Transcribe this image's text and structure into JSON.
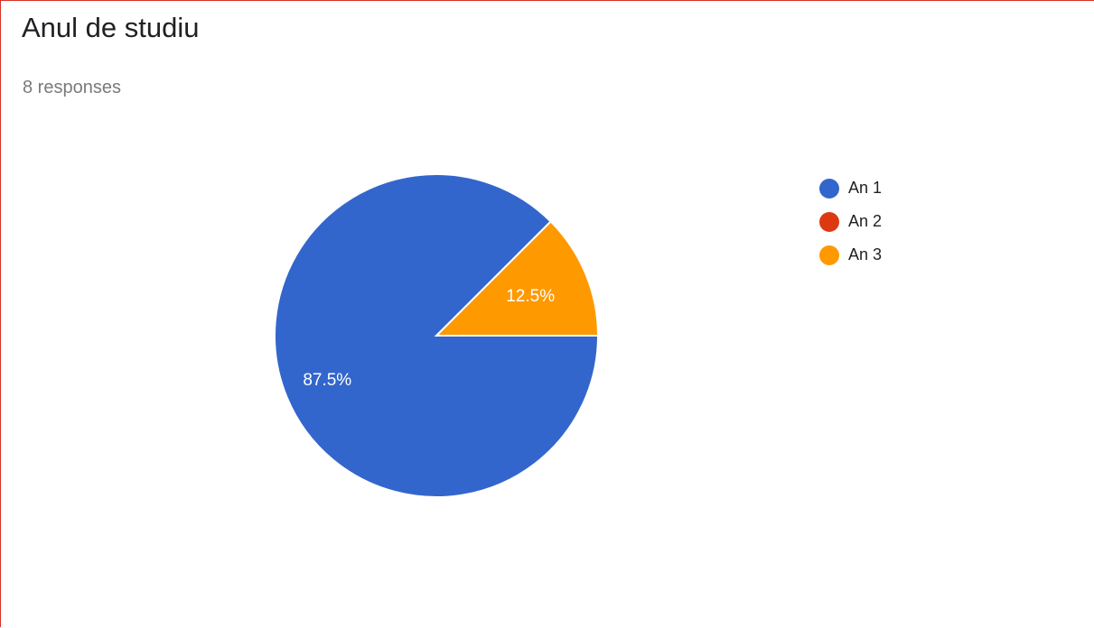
{
  "header": {
    "title": "Anul de studiu",
    "subtitle": "8 responses"
  },
  "chart_data": {
    "type": "pie",
    "title": "Anul de studiu",
    "subtitle": "8 responses",
    "legend_position": "right",
    "slices": [
      {
        "label": "An 1",
        "value": 87.5,
        "value_label": "87.5%",
        "color": "#3366cc"
      },
      {
        "label": "An 2",
        "value": 0,
        "value_label": "",
        "color": "#dc3912"
      },
      {
        "label": "An 3",
        "value": 12.5,
        "value_label": "12.5%",
        "color": "#ff9900"
      }
    ]
  }
}
